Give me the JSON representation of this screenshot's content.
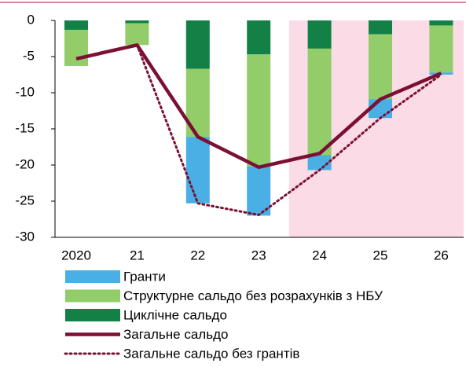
{
  "chart_data": {
    "type": "bar",
    "stacked": true,
    "categories": [
      "2020",
      "21",
      "22",
      "23",
      "24",
      "25",
      "26"
    ],
    "series": [
      {
        "name": "Циклічне сальдо",
        "color": "#138046",
        "values": [
          -1.3,
          -0.4,
          -6.7,
          -4.7,
          -3.9,
          -1.9,
          -0.7
        ],
        "legend_order": 2
      },
      {
        "name": "Структурне сальдо без розрахунків з НБУ",
        "color": "#92cd69",
        "values": [
          -5.0,
          -3.0,
          -9.4,
          -15.5,
          -14.7,
          -9.0,
          -6.5
        ],
        "legend_order": 1
      },
      {
        "name": "Гранти",
        "color": "#4aafe4",
        "values": [
          0,
          0,
          -9.2,
          -6.8,
          -2.1,
          -2.6,
          -0.3
        ],
        "legend_order": 0
      }
    ],
    "lines": [
      {
        "name": "Загальне сальдо",
        "color": "#7b1035",
        "style": "solid",
        "values": [
          -5.3,
          -3.4,
          -16.1,
          -20.3,
          -18.4,
          -10.9,
          -7.3
        ]
      },
      {
        "name": "Загальне сальдо без грантів",
        "color": "#7b1035",
        "style": "dotted",
        "values": [
          null,
          -3.4,
          -25.3,
          -26.9,
          -20.7,
          -13.5,
          -7.5
        ]
      }
    ],
    "ylim": [
      -30,
      0
    ],
    "yticks": [
      0,
      -5,
      -10,
      -15,
      -20,
      -25,
      -30
    ],
    "shaded_from": "24",
    "shade_color": "#fadbe6"
  }
}
